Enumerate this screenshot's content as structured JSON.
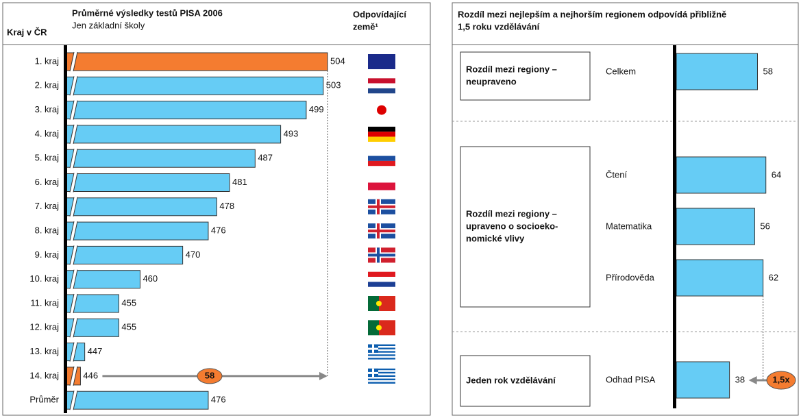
{
  "chart_data": [
    {
      "type": "bar",
      "orientation": "horizontal",
      "title": "Průměrné výsledky testů PISA 2006",
      "subtitle": "Jen základní školy",
      "category_header": "Kraj v ČR",
      "flag_header": [
        "Odpovídající",
        "země¹"
      ],
      "categories": [
        "1. kraj",
        "2. kraj",
        "3. kraj",
        "4. kraj",
        "5. kraj",
        "6. kraj",
        "7. kraj",
        "8. kraj",
        "9. kraj",
        "10. kraj",
        "11. kraj",
        "12. kraj",
        "13. kraj",
        "14. kraj",
        "Průměr"
      ],
      "values": [
        504,
        503,
        499,
        493,
        487,
        481,
        478,
        476,
        470,
        460,
        455,
        455,
        447,
        446,
        476
      ],
      "colors": [
        "#f47c30",
        "#66ccf5",
        "#66ccf5",
        "#66ccf5",
        "#66ccf5",
        "#66ccf5",
        "#66ccf5",
        "#66ccf5",
        "#66ccf5",
        "#66ccf5",
        "#66ccf5",
        "#66ccf5",
        "#66ccf5",
        "#f47c30",
        "#66ccf5"
      ],
      "xlim": [
        444,
        504
      ],
      "annotation": 58
    },
    {
      "type": "bar",
      "orientation": "horizontal",
      "title": [
        "Rozdíl mezi nejlepším a nejhorším regionem odpovídá přibližně",
        "1,5 roku vzdělávání"
      ],
      "color": "#66ccf5",
      "xlim": [
        0,
        70
      ],
      "groups": [
        {
          "label_lines": [
            "Rozdíl mezi regiony –",
            "neupraveno"
          ],
          "categories": [
            "Celkem"
          ],
          "values": [
            58
          ]
        },
        {
          "label_lines": [
            "Rozdíl mezi regiony –",
            "upraveno o socioeko-",
            "nomické vlivy"
          ],
          "categories": [
            "Čtení",
            "Matematika",
            "Přírodověda"
          ],
          "values": [
            64,
            56,
            62
          ]
        },
        {
          "label_lines": [
            "Jeden rok vzdělávání"
          ],
          "categories": [
            "Odhad PISA"
          ],
          "values": [
            38
          ]
        }
      ],
      "annotation": {
        "value": 1.5,
        "label": "1,5x"
      }
    }
  ]
}
